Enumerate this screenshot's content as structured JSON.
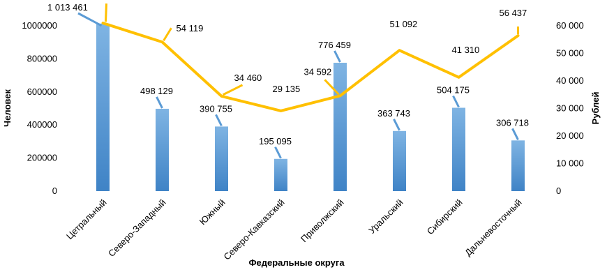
{
  "chart_data": {
    "type": "bar",
    "xlabel": "Федеральные округа",
    "ylabel": "Человек",
    "y2label": "Рублей",
    "categories": [
      "Цетральный",
      "Северо-Западный",
      "Южный",
      "Северо-Кавказский",
      "Приволжский",
      "Уральский",
      "Сибирский",
      "Дальневосточный"
    ],
    "series": [
      {
        "type": "bar",
        "axis": "left",
        "values": [
          1013461,
          498129,
          390755,
          195095,
          776459,
          363743,
          504175,
          306718
        ],
        "labels": [
          "1 013 461",
          "498 129",
          "390 755",
          "195 095",
          "776 459",
          "363 743",
          "504 175",
          "306 718"
        ],
        "color": "#5b9bd5"
      },
      {
        "type": "line",
        "axis": "right",
        "values": [
          61000,
          54119,
          34460,
          29135,
          34592,
          51092,
          41310,
          56437
        ],
        "labels": [
          "",
          "54 119",
          "34 460",
          "29 135",
          "34 592",
          "51 092",
          "41 310",
          "56 437"
        ],
        "color": "#ffc000"
      }
    ],
    "ylim": [
      0,
      1000000
    ],
    "y_ticks": [
      "0",
      "200000",
      "400000",
      "600000",
      "800000",
      "1000000"
    ],
    "y2lim": [
      0,
      60000
    ],
    "y2_ticks": [
      "0",
      "10 000",
      "20 000",
      "30 000",
      "40 000",
      "50 000",
      "60 000"
    ],
    "grid": false,
    "legend": "none"
  }
}
